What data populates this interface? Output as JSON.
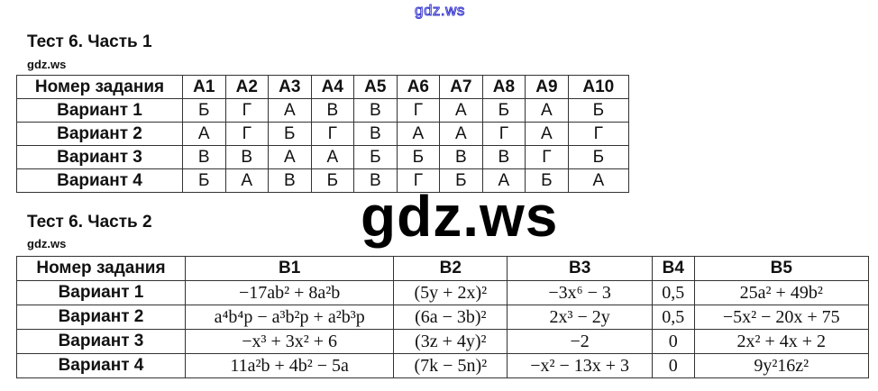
{
  "watermark_top": "gdz.ws",
  "watermark_big": "gdz.ws",
  "part1": {
    "title": "Тест 6. Часть 1",
    "source": "gdz.ws",
    "headers": [
      "Номер задания",
      "A1",
      "A2",
      "A3",
      "A4",
      "A5",
      "A6",
      "A7",
      "A8",
      "A9",
      "A10"
    ],
    "rows": [
      [
        "Вариант 1",
        "Б",
        "Г",
        "А",
        "В",
        "В",
        "Г",
        "А",
        "Б",
        "А",
        "Б"
      ],
      [
        "Вариант 2",
        "А",
        "Г",
        "Б",
        "Г",
        "В",
        "А",
        "А",
        "Г",
        "А",
        "Г"
      ],
      [
        "Вариант 3",
        "В",
        "В",
        "А",
        "А",
        "Б",
        "Б",
        "В",
        "В",
        "Г",
        "Б"
      ],
      [
        "Вариант 4",
        "Б",
        "А",
        "В",
        "Б",
        "В",
        "Г",
        "Б",
        "А",
        "Б",
        "А"
      ]
    ]
  },
  "part2": {
    "title": "Тест 6. Часть 2",
    "source": "gdz.ws",
    "headers": [
      "Номер задания",
      "B1",
      "B2",
      "B3",
      "B4",
      "B5"
    ],
    "rows": [
      [
        "Вариант 1",
        "−17ab² + 8a²b",
        "(5y + 2x)²",
        "−3x⁶ − 3",
        "0,5",
        "25a² + 49b²"
      ],
      [
        "Вариант 2",
        "a⁴b⁴p − a³b²p + a²b³p",
        "(6a − 3b)²",
        "2x³ − 2y",
        "0,5",
        "−5x² − 20x + 75"
      ],
      [
        "Вариант 3",
        "−x³ + 3x² + 6",
        "(3z + 4y)²",
        "−2",
        "0",
        "2x² + 4x + 2"
      ],
      [
        "Вариант 4",
        "11a²b + 4b² − 5a",
        "(7k − 5n)²",
        "−x² − 13x + 3",
        "0",
        "9y²16z²"
      ]
    ]
  }
}
